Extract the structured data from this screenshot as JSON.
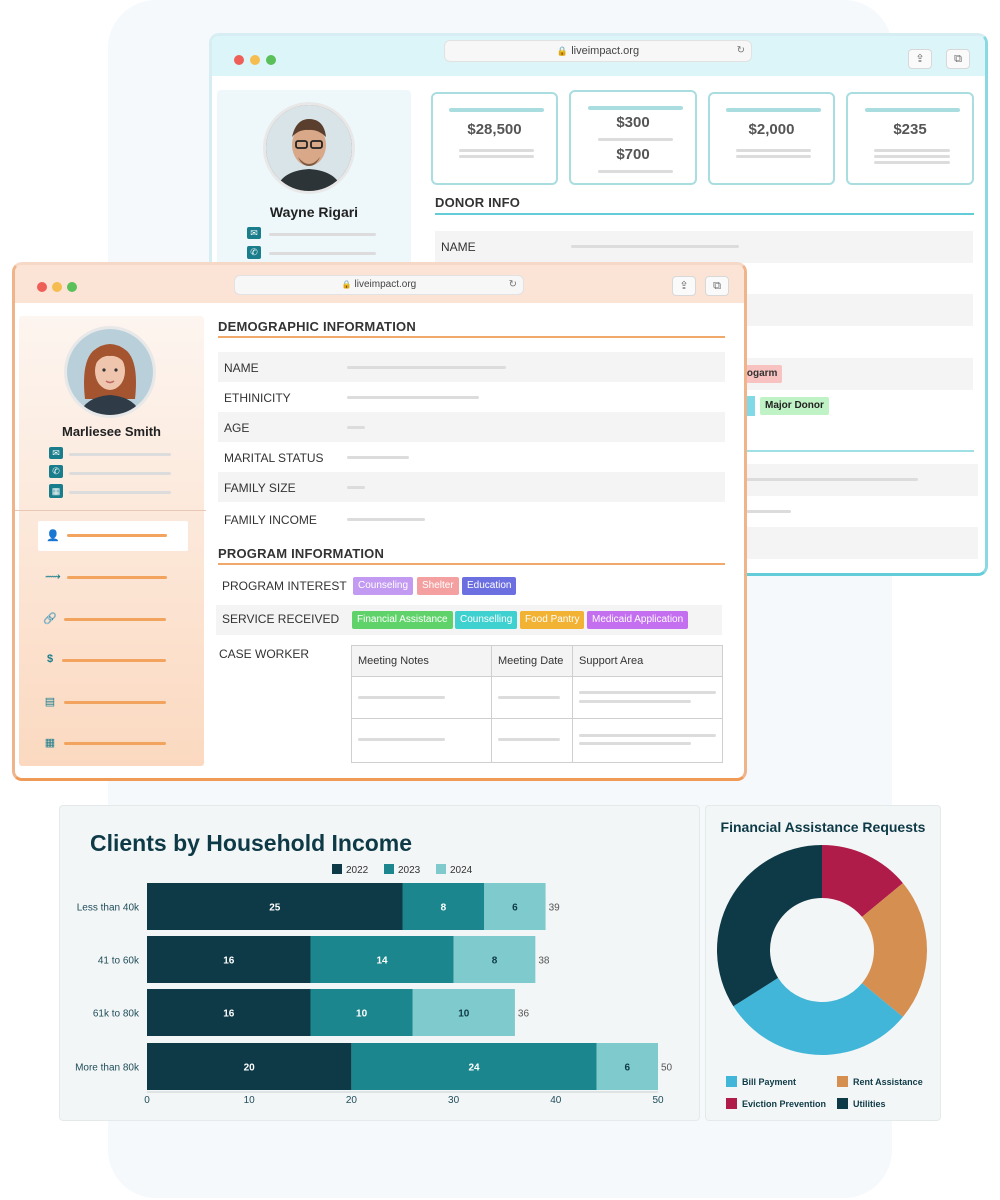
{
  "back_window": {
    "url": "liveimpact.org",
    "donor_name": "Wayne Rigari",
    "cards": [
      {
        "values": [
          "$28,500"
        ]
      },
      {
        "values": [
          "$300",
          "$700"
        ]
      },
      {
        "values": [
          "$2,000"
        ]
      },
      {
        "values": [
          "$235"
        ]
      }
    ],
    "section_title": "DONOR INFO",
    "name_label": "NAME",
    "tags": [
      {
        "label": "rogarm"
      },
      {
        "label": "Major Donor"
      }
    ]
  },
  "front_window": {
    "url": "liveimpact.org",
    "client_name": "Marliesee Smith",
    "sidebar_icons": [
      "user-icon",
      "pulse-icon",
      "link-icon",
      "dollar-icon",
      "document-icon",
      "calendar-icon"
    ],
    "demographic": {
      "title": "DEMOGRAPHIC INFORMATION",
      "fields": [
        "NAME",
        "ETHINICITY",
        "AGE",
        "MARITAL STATUS",
        "FAMILY SIZE",
        "FAMILY INCOME"
      ]
    },
    "program": {
      "title": "PROGRAM INFORMATION",
      "interest_label": "PROGRAM INTEREST",
      "interest_tags": [
        {
          "label": "Counseling",
          "color": "#c39af2"
        },
        {
          "label": "Shelter",
          "color": "#f4a0a0"
        },
        {
          "label": "Education",
          "color": "#6c6fe0"
        }
      ],
      "service_label": "SERVICE RECEIVED",
      "service_tags": [
        {
          "label": "Financial Assistance",
          "color": "#5fd36a"
        },
        {
          "label": "Counselling",
          "color": "#3fd0d0"
        },
        {
          "label": "Food Pantry",
          "color": "#f2b233"
        },
        {
          "label": "Medicaid Application",
          "color": "#c36ff0"
        }
      ],
      "case_worker_label": "CASE WORKER",
      "table_headers": [
        "Meeting Notes",
        "Meeting Date",
        "Support Area"
      ]
    }
  },
  "chart_data": [
    {
      "type": "bar",
      "orientation": "horizontal",
      "stacked": true,
      "title": "Clients by Household Income",
      "categories": [
        "Less than 40k",
        "41 to 60k",
        "61k to 80k",
        "More than 80k"
      ],
      "series": [
        {
          "name": "2022",
          "values": [
            25,
            16,
            16,
            20
          ],
          "color": "#0e3a47"
        },
        {
          "name": "2023",
          "values": [
            8,
            14,
            10,
            24
          ],
          "color": "#1b868d"
        },
        {
          "name": "2024",
          "values": [
            6,
            8,
            10,
            6
          ],
          "color": "#7fcacd"
        }
      ],
      "totals": [
        39,
        38,
        36,
        50
      ],
      "xticks": [
        0,
        10,
        20,
        30,
        40,
        50
      ],
      "xlim": [
        0,
        50
      ],
      "legend": "top",
      "grid": false
    },
    {
      "type": "pie",
      "donut": true,
      "title": "Financial Assistance Requests",
      "slices": [
        {
          "name": "Eviction Prevention",
          "value": 14,
          "color": "#b01c4a"
        },
        {
          "name": "Rent Assistance",
          "value": 22,
          "color": "#d58f50"
        },
        {
          "name": "Bill Payment",
          "value": 30,
          "color": "#42b6d8"
        },
        {
          "name": "Utilities",
          "value": 34,
          "color": "#0e3a47"
        }
      ],
      "legend_order": [
        "Bill Payment",
        "Rent Assistance",
        "Eviction Prevention",
        "Utilities"
      ],
      "legend": "bottom"
    }
  ]
}
